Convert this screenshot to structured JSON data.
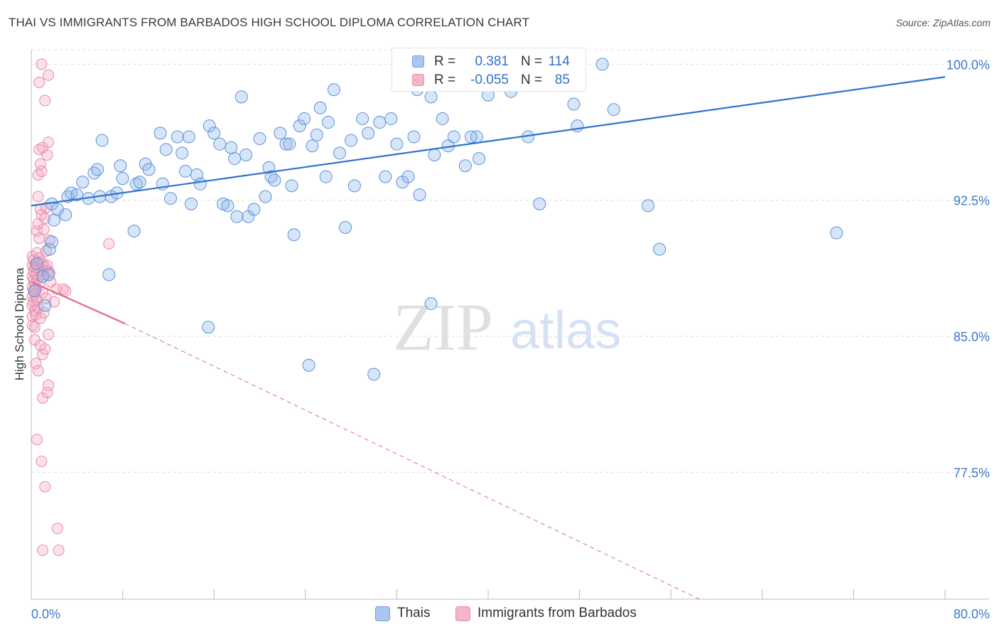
{
  "chart_data": {
    "type": "scatter",
    "title": "THAI VS IMMIGRANTS FROM BARBADOS HIGH SCHOOL DIPLOMA CORRELATION CHART",
    "source": "Source: ZipAtlas.com",
    "ylabel": "High School Diploma",
    "xlabel": "",
    "xlim": [
      0,
      80
    ],
    "ylim": [
      70.5,
      100.8
    ],
    "x_tick_labels": [
      "0.0%",
      "80.0%"
    ],
    "y_ticks": [
      {
        "value": 100,
        "label": "100.0%"
      },
      {
        "value": 92.5,
        "label": "92.5%"
      },
      {
        "value": 85,
        "label": "85.0%"
      },
      {
        "value": 77.5,
        "label": "77.5%"
      }
    ],
    "grid": true,
    "legend": {
      "placement": "top-center",
      "entries": [
        {
          "swatch": "#a9c8f0",
          "r_label": "R =",
          "r_value": "0.381",
          "n_label": "N =",
          "n_value": "114"
        },
        {
          "swatch": "#f5b5c8",
          "r_label": "R =",
          "r_value": "-0.055",
          "n_label": "N =",
          "n_value": "85"
        }
      ]
    },
    "bottom_legend": [
      "Thais",
      "Immigrants from Barbados"
    ],
    "watermark": {
      "zip": "ZIP",
      "atlas": "atlas"
    },
    "colors": {
      "thais": "#5b93d8",
      "thais_fill": "rgba(140,180,235,0.35)",
      "thais_line": "#2f72cf",
      "barbados": "#e88aa8",
      "barbados_fill": "rgba(245,170,195,0.35)",
      "barbados_line": "#e0698f",
      "tick_label": "#3f79cc"
    },
    "series": [
      {
        "name": "Thais",
        "trend": {
          "x": [
            0,
            80
          ],
          "y": [
            92.2,
            99.3
          ]
        },
        "points": [
          [
            0.3,
            87.5
          ],
          [
            0.5,
            89.0
          ],
          [
            1.0,
            88.3
          ],
          [
            1.2,
            86.7
          ],
          [
            1.5,
            88.4
          ],
          [
            1.6,
            89.8
          ],
          [
            1.8,
            90.2
          ],
          [
            1.8,
            92.3
          ],
          [
            2.0,
            91.4
          ],
          [
            2.3,
            92.0
          ],
          [
            3.0,
            91.7
          ],
          [
            3.2,
            92.7
          ],
          [
            3.5,
            92.9
          ],
          [
            4.0,
            92.8
          ],
          [
            4.5,
            93.5
          ],
          [
            5.0,
            92.6
          ],
          [
            5.5,
            94.0
          ],
          [
            5.8,
            94.2
          ],
          [
            6.0,
            92.7
          ],
          [
            6.2,
            95.8
          ],
          [
            6.8,
            88.4
          ],
          [
            7.0,
            92.7
          ],
          [
            7.5,
            92.9
          ],
          [
            7.8,
            94.4
          ],
          [
            8.0,
            93.7
          ],
          [
            9.0,
            90.8
          ],
          [
            9.2,
            93.4
          ],
          [
            9.5,
            93.5
          ],
          [
            10.0,
            94.5
          ],
          [
            10.3,
            94.2
          ],
          [
            11.3,
            96.2
          ],
          [
            11.5,
            93.4
          ],
          [
            11.8,
            95.3
          ],
          [
            12.2,
            92.6
          ],
          [
            12.8,
            96.0
          ],
          [
            13.2,
            95.1
          ],
          [
            13.8,
            96.0
          ],
          [
            14.0,
            92.3
          ],
          [
            14.5,
            93.9
          ],
          [
            14.8,
            93.4
          ],
          [
            15.5,
            85.5
          ],
          [
            15.6,
            96.6
          ],
          [
            16.0,
            96.2
          ],
          [
            16.5,
            95.6
          ],
          [
            16.8,
            92.3
          ],
          [
            17.2,
            92.2
          ],
          [
            17.5,
            95.4
          ],
          [
            17.8,
            94.8
          ],
          [
            18.0,
            91.6
          ],
          [
            18.4,
            98.2
          ],
          [
            18.8,
            95.0
          ],
          [
            19.0,
            91.6
          ],
          [
            19.5,
            92.0
          ],
          [
            20.0,
            95.9
          ],
          [
            20.5,
            92.7
          ],
          [
            20.8,
            94.3
          ],
          [
            21.0,
            93.8
          ],
          [
            21.3,
            93.6
          ],
          [
            21.8,
            96.2
          ],
          [
            22.3,
            95.6
          ],
          [
            22.6,
            95.6
          ],
          [
            22.8,
            93.3
          ],
          [
            23.0,
            90.6
          ],
          [
            23.5,
            96.6
          ],
          [
            23.9,
            97.0
          ],
          [
            24.3,
            83.4
          ],
          [
            24.6,
            95.5
          ],
          [
            25.0,
            96.1
          ],
          [
            25.3,
            97.6
          ],
          [
            25.8,
            93.8
          ],
          [
            26.5,
            98.6
          ],
          [
            27.0,
            95.1
          ],
          [
            27.5,
            91.0
          ],
          [
            28.0,
            95.8
          ],
          [
            28.3,
            93.3
          ],
          [
            29.0,
            97.0
          ],
          [
            29.5,
            96.2
          ],
          [
            30.0,
            82.9
          ],
          [
            30.5,
            96.8
          ],
          [
            31.0,
            93.8
          ],
          [
            31.5,
            97.0
          ],
          [
            32.0,
            95.6
          ],
          [
            32.5,
            93.5
          ],
          [
            33.0,
            93.8
          ],
          [
            33.5,
            96.0
          ],
          [
            34.0,
            92.8
          ],
          [
            35.0,
            86.8
          ],
          [
            35.3,
            95.0
          ],
          [
            35.5,
            99.5
          ],
          [
            36.0,
            97.0
          ],
          [
            36.5,
            95.5
          ],
          [
            37.0,
            96.0
          ],
          [
            38.0,
            94.4
          ],
          [
            39.0,
            96.0
          ],
          [
            39.2,
            94.8
          ],
          [
            40.5,
            99.8
          ],
          [
            41.5,
            100.0
          ],
          [
            42.0,
            98.5
          ],
          [
            43.5,
            96.0
          ],
          [
            44.5,
            92.3
          ],
          [
            47.5,
            97.8
          ],
          [
            47.8,
            96.6
          ],
          [
            50.0,
            100.0
          ],
          [
            51.0,
            97.5
          ],
          [
            54.0,
            92.2
          ],
          [
            55.0,
            89.8
          ],
          [
            70.5,
            90.7
          ],
          [
            33.8,
            98.6
          ],
          [
            35.0,
            98.2
          ],
          [
            40.0,
            98.3
          ],
          [
            38.5,
            96.0
          ],
          [
            45.5,
            99.2
          ],
          [
            26.0,
            96.8
          ],
          [
            13.5,
            94.1
          ]
        ]
      },
      {
        "name": "Immigrants from Barbados",
        "trend": {
          "x": [
            0,
            8.2
          ],
          "y": [
            88.0,
            85.7
          ]
        },
        "trend_dashed": {
          "x": [
            8.2,
            58.5
          ],
          "y": [
            85.7,
            70.5
          ]
        },
        "points": [
          [
            0.1,
            89.4
          ],
          [
            0.1,
            88.9
          ],
          [
            0.1,
            88.3
          ],
          [
            0.1,
            87.7
          ],
          [
            0.1,
            87.2
          ],
          [
            0.1,
            86.7
          ],
          [
            0.1,
            86.1
          ],
          [
            0.1,
            85.6
          ],
          [
            0.2,
            89.2
          ],
          [
            0.2,
            88.6
          ],
          [
            0.2,
            88.1
          ],
          [
            0.2,
            87.5
          ],
          [
            0.2,
            86.9
          ],
          [
            0.3,
            88.8
          ],
          [
            0.3,
            87.9
          ],
          [
            0.3,
            87.3
          ],
          [
            0.3,
            86.4
          ],
          [
            0.3,
            85.5
          ],
          [
            0.3,
            84.8
          ],
          [
            0.4,
            89.0
          ],
          [
            0.4,
            88.4
          ],
          [
            0.4,
            87.6
          ],
          [
            0.4,
            86.2
          ],
          [
            0.4,
            83.5
          ],
          [
            0.5,
            90.8
          ],
          [
            0.5,
            89.6
          ],
          [
            0.5,
            88.8
          ],
          [
            0.5,
            87.0
          ],
          [
            0.5,
            79.3
          ],
          [
            0.6,
            93.9
          ],
          [
            0.6,
            92.7
          ],
          [
            0.6,
            91.2
          ],
          [
            0.6,
            88.2
          ],
          [
            0.6,
            86.6
          ],
          [
            0.6,
            83.1
          ],
          [
            0.7,
            99.0
          ],
          [
            0.7,
            95.3
          ],
          [
            0.7,
            90.4
          ],
          [
            0.7,
            89.3
          ],
          [
            0.7,
            87.8
          ],
          [
            0.8,
            94.5
          ],
          [
            0.8,
            92.0
          ],
          [
            0.8,
            89.1
          ],
          [
            0.8,
            86.0
          ],
          [
            0.8,
            84.5
          ],
          [
            0.9,
            100.0
          ],
          [
            0.9,
            94.1
          ],
          [
            0.9,
            91.7
          ],
          [
            0.9,
            88.6
          ],
          [
            0.9,
            78.1
          ],
          [
            1.0,
            95.4
          ],
          [
            1.0,
            89.0
          ],
          [
            1.0,
            87.4
          ],
          [
            1.0,
            84.0
          ],
          [
            1.0,
            81.6
          ],
          [
            1.0,
            73.2
          ],
          [
            1.1,
            90.9
          ],
          [
            1.1,
            88.4
          ],
          [
            1.1,
            86.3
          ],
          [
            1.2,
            98.0
          ],
          [
            1.2,
            91.5
          ],
          [
            1.2,
            88.8
          ],
          [
            1.2,
            84.3
          ],
          [
            1.2,
            76.7
          ],
          [
            1.3,
            92.1
          ],
          [
            1.3,
            89.7
          ],
          [
            1.3,
            87.1
          ],
          [
            1.4,
            95.0
          ],
          [
            1.4,
            88.9
          ],
          [
            1.4,
            81.9
          ],
          [
            1.5,
            99.4
          ],
          [
            1.5,
            95.7
          ],
          [
            1.5,
            88.6
          ],
          [
            1.5,
            85.1
          ],
          [
            1.5,
            82.3
          ],
          [
            1.6,
            90.3
          ],
          [
            1.6,
            88.5
          ],
          [
            1.7,
            88.0
          ],
          [
            2.0,
            86.9
          ],
          [
            2.2,
            87.6
          ],
          [
            2.3,
            74.4
          ],
          [
            2.4,
            73.2
          ],
          [
            3.0,
            87.5
          ],
          [
            2.8,
            87.6
          ],
          [
            6.8,
            90.1
          ]
        ]
      }
    ]
  }
}
